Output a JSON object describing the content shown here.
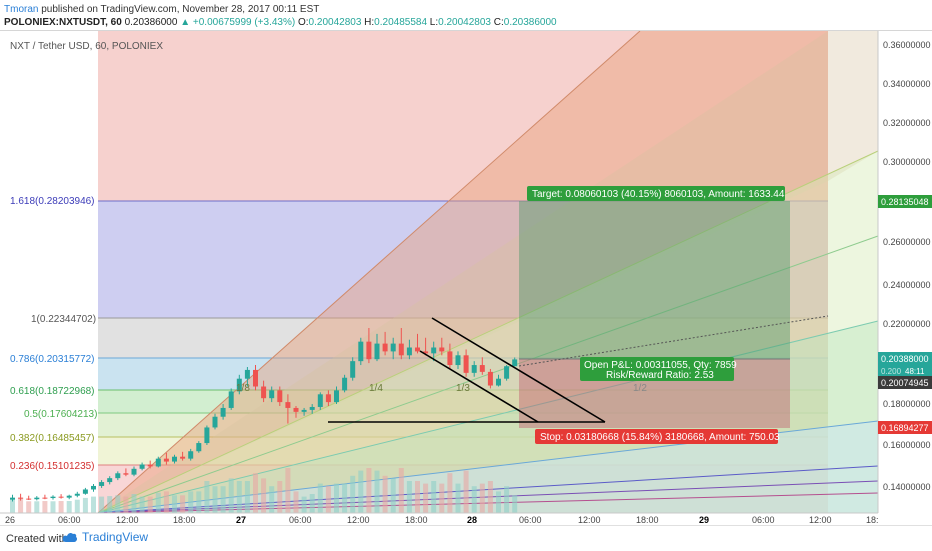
{
  "header": {
    "author": "Tmoran",
    "published_text": "published on TradingView.com, November 28, 2017 00:11 EST",
    "symbol": "POLONIEX:NXTUSDT, 60",
    "price": "0.20386000",
    "change": "▲ +0.00675999 (+3.43%)",
    "open_label": "O:",
    "open": "0.20042803",
    "high_label": "H:",
    "high": "0.20485584",
    "low_label": "L:",
    "low": "0.20042803",
    "close_label": "C:",
    "close": "0.20386000"
  },
  "chart": {
    "pair_title": "NXT / Tether USD, 60, POLONIEX",
    "price_axis": [
      "0.36000000",
      "0.34000000",
      "0.32000000",
      "0.30000000",
      "0.26000000",
      "0.24000000",
      "0.22000000",
      "0.18000000",
      "0.16000000",
      "0.14000000"
    ],
    "time_axis": [
      "26",
      "06:00",
      "12:00",
      "18:00",
      "27",
      "06:00",
      "12:00",
      "18:00",
      "28",
      "06:00",
      "12:00",
      "18:00",
      "29",
      "06:00",
      "12:00",
      "18:"
    ],
    "fib_levels": [
      {
        "label": "1.618(0.28203946)",
        "color": "#3b3bb8"
      },
      {
        "label": "1(0.22344702)",
        "color": "#555555"
      },
      {
        "label": "0.786(0.20315772)",
        "color": "#2a7fd6"
      },
      {
        "label": "0.618(0.18722968)",
        "color": "#2e9e4f"
      },
      {
        "label": "0.5(0.17604213)",
        "color": "#4caf50"
      },
      {
        "label": "0.382(0.16485457)",
        "color": "#8a9a20"
      },
      {
        "label": "0.236(0.15101235)",
        "color": "#d32f2f"
      }
    ],
    "fan_labels": [
      "1/8",
      "1/4",
      "1/3",
      "1/2"
    ],
    "target_label": "Target: 0.08060103 (40.15%) 8060103, Amount: 1633.44",
    "stop_label": "Stop: 0.03180668 (15.84%) 3180668, Amount: 750.03",
    "pnl_line1": "Open P&L: 0.00311055, Qty: 7859",
    "pnl_line2": "Risk/Reward Ratio: 2.53",
    "axis_tags": {
      "target": "0.28135048",
      "price": "0.20388000",
      "countdown": "48:11",
      "entry": "0.20074945",
      "stop": "0.16894277",
      "behind_label": "0.200"
    },
    "candles": [
      {
        "o": 0.132,
        "h": 0.1345,
        "l": 0.131,
        "c": 0.133
      },
      {
        "o": 0.133,
        "h": 0.135,
        "l": 0.1315,
        "c": 0.1325
      },
      {
        "o": 0.1325,
        "h": 0.134,
        "l": 0.1318,
        "c": 0.1322
      },
      {
        "o": 0.1322,
        "h": 0.1338,
        "l": 0.1316,
        "c": 0.133
      },
      {
        "o": 0.133,
        "h": 0.1345,
        "l": 0.1322,
        "c": 0.1328
      },
      {
        "o": 0.1328,
        "h": 0.1342,
        "l": 0.132,
        "c": 0.1335
      },
      {
        "o": 0.1335,
        "h": 0.1348,
        "l": 0.1325,
        "c": 0.133
      },
      {
        "o": 0.133,
        "h": 0.1345,
        "l": 0.1322,
        "c": 0.134
      },
      {
        "o": 0.134,
        "h": 0.136,
        "l": 0.1332,
        "c": 0.135
      },
      {
        "o": 0.135,
        "h": 0.138,
        "l": 0.1345,
        "c": 0.1372
      },
      {
        "o": 0.1372,
        "h": 0.14,
        "l": 0.136,
        "c": 0.139
      },
      {
        "o": 0.139,
        "h": 0.142,
        "l": 0.138,
        "c": 0.141
      },
      {
        "o": 0.141,
        "h": 0.144,
        "l": 0.1398,
        "c": 0.143
      },
      {
        "o": 0.143,
        "h": 0.1465,
        "l": 0.142,
        "c": 0.1455
      },
      {
        "o": 0.1455,
        "h": 0.148,
        "l": 0.144,
        "c": 0.1448
      },
      {
        "o": 0.1448,
        "h": 0.149,
        "l": 0.144,
        "c": 0.1478
      },
      {
        "o": 0.1478,
        "h": 0.151,
        "l": 0.147,
        "c": 0.15
      },
      {
        "o": 0.15,
        "h": 0.152,
        "l": 0.148,
        "c": 0.149
      },
      {
        "o": 0.149,
        "h": 0.154,
        "l": 0.1485,
        "c": 0.153
      },
      {
        "o": 0.153,
        "h": 0.156,
        "l": 0.15,
        "c": 0.1515
      },
      {
        "o": 0.1515,
        "h": 0.155,
        "l": 0.1505,
        "c": 0.154
      },
      {
        "o": 0.154,
        "h": 0.1565,
        "l": 0.152,
        "c": 0.153
      },
      {
        "o": 0.153,
        "h": 0.158,
        "l": 0.152,
        "c": 0.1568
      },
      {
        "o": 0.1568,
        "h": 0.162,
        "l": 0.156,
        "c": 0.161
      },
      {
        "o": 0.161,
        "h": 0.17,
        "l": 0.16,
        "c": 0.169
      },
      {
        "o": 0.169,
        "h": 0.176,
        "l": 0.168,
        "c": 0.1745
      },
      {
        "o": 0.1745,
        "h": 0.181,
        "l": 0.173,
        "c": 0.179
      },
      {
        "o": 0.179,
        "h": 0.189,
        "l": 0.178,
        "c": 0.1875
      },
      {
        "o": 0.1875,
        "h": 0.196,
        "l": 0.186,
        "c": 0.194
      },
      {
        "o": 0.194,
        "h": 0.2,
        "l": 0.19,
        "c": 0.1985
      },
      {
        "o": 0.1985,
        "h": 0.201,
        "l": 0.188,
        "c": 0.19
      },
      {
        "o": 0.19,
        "h": 0.193,
        "l": 0.182,
        "c": 0.184
      },
      {
        "o": 0.184,
        "h": 0.19,
        "l": 0.182,
        "c": 0.188
      },
      {
        "o": 0.188,
        "h": 0.19,
        "l": 0.18,
        "c": 0.182
      },
      {
        "o": 0.182,
        "h": 0.186,
        "l": 0.171,
        "c": 0.179
      },
      {
        "o": 0.179,
        "h": 0.18,
        "l": 0.174,
        "c": 0.177
      },
      {
        "o": 0.177,
        "h": 0.179,
        "l": 0.175,
        "c": 0.178
      },
      {
        "o": 0.178,
        "h": 0.181,
        "l": 0.176,
        "c": 0.1795
      },
      {
        "o": 0.1795,
        "h": 0.187,
        "l": 0.178,
        "c": 0.186
      },
      {
        "o": 0.186,
        "h": 0.188,
        "l": 0.18,
        "c": 0.182
      },
      {
        "o": 0.182,
        "h": 0.19,
        "l": 0.181,
        "c": 0.188
      },
      {
        "o": 0.188,
        "h": 0.196,
        "l": 0.187,
        "c": 0.1945
      },
      {
        "o": 0.1945,
        "h": 0.205,
        "l": 0.193,
        "c": 0.203
      },
      {
        "o": 0.203,
        "h": 0.215,
        "l": 0.201,
        "c": 0.213
      },
      {
        "o": 0.213,
        "h": 0.22,
        "l": 0.202,
        "c": 0.204
      },
      {
        "o": 0.204,
        "h": 0.217,
        "l": 0.203,
        "c": 0.212
      },
      {
        "o": 0.212,
        "h": 0.218,
        "l": 0.206,
        "c": 0.208
      },
      {
        "o": 0.208,
        "h": 0.215,
        "l": 0.204,
        "c": 0.212
      },
      {
        "o": 0.212,
        "h": 0.22,
        "l": 0.204,
        "c": 0.206
      },
      {
        "o": 0.206,
        "h": 0.214,
        "l": 0.204,
        "c": 0.21
      },
      {
        "o": 0.21,
        "h": 0.217,
        "l": 0.207,
        "c": 0.208
      },
      {
        "o": 0.208,
        "h": 0.215,
        "l": 0.206,
        "c": 0.207
      },
      {
        "o": 0.207,
        "h": 0.213,
        "l": 0.203,
        "c": 0.21
      },
      {
        "o": 0.21,
        "h": 0.215,
        "l": 0.206,
        "c": 0.208
      },
      {
        "o": 0.208,
        "h": 0.212,
        "l": 0.199,
        "c": 0.201
      },
      {
        "o": 0.201,
        "h": 0.208,
        "l": 0.199,
        "c": 0.206
      },
      {
        "o": 0.206,
        "h": 0.209,
        "l": 0.195,
        "c": 0.197
      },
      {
        "o": 0.197,
        "h": 0.203,
        "l": 0.195,
        "c": 0.201
      },
      {
        "o": 0.201,
        "h": 0.205,
        "l": 0.196,
        "c": 0.1975
      },
      {
        "o": 0.1975,
        "h": 0.199,
        "l": 0.189,
        "c": 0.1905
      },
      {
        "o": 0.1905,
        "h": 0.196,
        "l": 0.19,
        "c": 0.194
      },
      {
        "o": 0.194,
        "h": 0.201,
        "l": 0.193,
        "c": 0.2004
      },
      {
        "o": 0.2004,
        "h": 0.2049,
        "l": 0.2004,
        "c": 0.2039
      }
    ],
    "colors": {
      "up": "#26a69a",
      "down": "#ef5350",
      "target_zone": "#5a9e6f",
      "stop_zone": "#c8707a",
      "fan_zone": "#f5a89a",
      "target_tag": "#2e9e3c",
      "stop_tag": "#e53935"
    }
  },
  "footer": {
    "created_with": "Created with",
    "brand": "TradingView"
  }
}
